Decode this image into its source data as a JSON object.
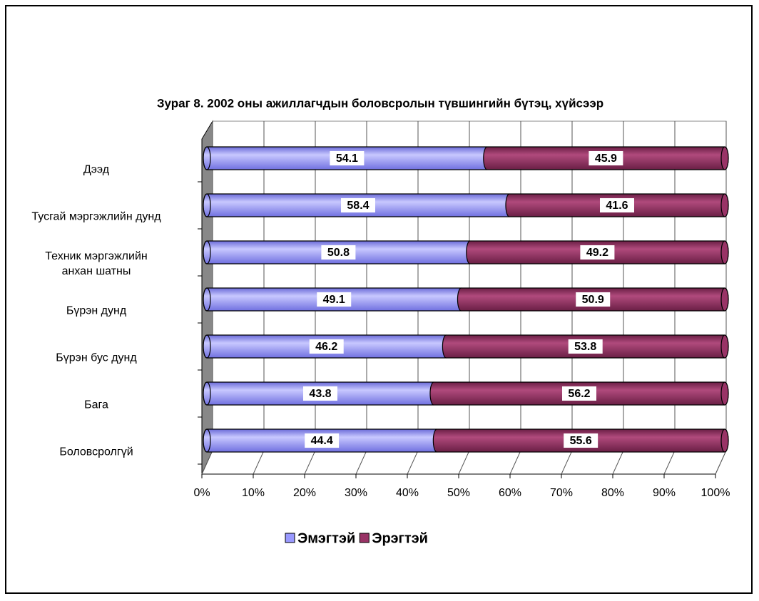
{
  "chart_data": {
    "type": "stacked-bar-horizontal",
    "title": "Зураг 8. 2002 оны ажиллагчдын боловсролын түвшингийн бүтэц, хүйсээр",
    "categories": [
      "Дээд",
      "Тусгай мэргэжлийн дунд",
      "Техник мэргэжлийн\nанхан шатны",
      "Бүрэн дунд",
      "Бүрэн бус дунд",
      "Бага",
      "Боловсролгүй"
    ],
    "series": [
      {
        "name": "Эмэгтэй",
        "color": "#9999ff",
        "values": [
          54.1,
          58.4,
          50.8,
          49.1,
          46.2,
          43.8,
          44.4
        ]
      },
      {
        "name": "Эрэгтэй",
        "color": "#993366",
        "values": [
          45.9,
          41.6,
          49.2,
          50.9,
          53.8,
          56.2,
          55.6
        ]
      }
    ],
    "xlim": [
      0,
      100
    ],
    "xticks": [
      {
        "value": 0,
        "label": "0%"
      },
      {
        "value": 10,
        "label": "10%"
      },
      {
        "value": 20,
        "label": "20%"
      },
      {
        "value": 30,
        "label": "30%"
      },
      {
        "value": 40,
        "label": "40%"
      },
      {
        "value": 50,
        "label": "50%"
      },
      {
        "value": 60,
        "label": "60%"
      },
      {
        "value": 70,
        "label": "70%"
      },
      {
        "value": 80,
        "label": "80%"
      },
      {
        "value": 90,
        "label": "90%"
      },
      {
        "value": 100,
        "label": "100%"
      }
    ],
    "grid": true,
    "legend": "bottom"
  }
}
